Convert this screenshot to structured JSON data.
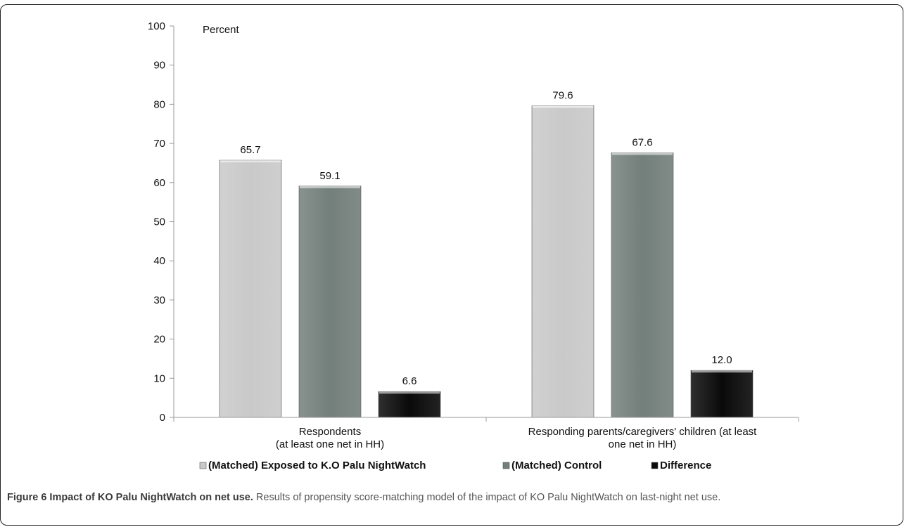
{
  "chart_data": {
    "type": "bar",
    "ylabel": "Percent",
    "ylim": [
      0,
      100
    ],
    "yticks": [
      0,
      10,
      20,
      30,
      40,
      50,
      60,
      70,
      80,
      90,
      100
    ],
    "categories": [
      [
        "Respondents",
        "(at least one net in HH)"
      ],
      [
        "Responding parents/caregivers' children (at least",
        "one net in HH)"
      ]
    ],
    "series": [
      {
        "name": "(Matched) Exposed to K.O Palu NightWatch",
        "values": [
          65.7,
          79.6
        ],
        "labels": [
          "65.7",
          "79.6"
        ],
        "color": "#c9c9c9"
      },
      {
        "name": "(Matched) Control",
        "values": [
          59.1,
          67.6
        ],
        "labels": [
          "59.1",
          "67.6"
        ],
        "color": "#737f7b"
      },
      {
        "name": "Difference",
        "values": [
          6.6,
          12.0
        ],
        "labels": [
          "6.6",
          "12.0"
        ],
        "color": "#0a0a0a"
      }
    ],
    "legend_position": "bottom",
    "grid": false
  },
  "caption": {
    "label": "Figure 6 Impact of KO Palu NightWatch on net use.",
    "text": " Results of propensity score-matching model of the impact of KO Palu NightWatch on last-night net use."
  }
}
